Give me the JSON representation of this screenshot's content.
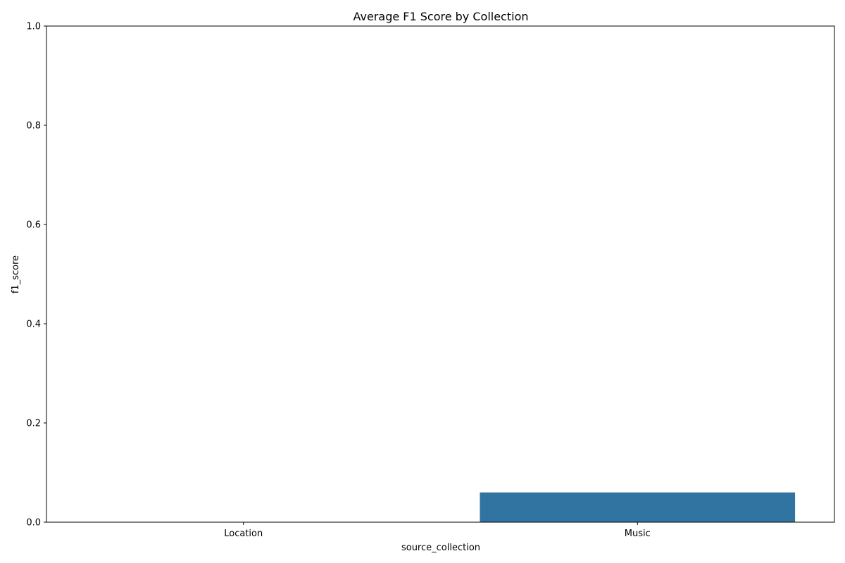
{
  "chart_data": {
    "type": "bar",
    "title": "Average F1 Score by Collection",
    "xlabel": "source_collection",
    "ylabel": "f1_score",
    "categories": [
      "Location",
      "Music"
    ],
    "values": [
      0.0,
      0.06
    ],
    "ylim": [
      0,
      1.0
    ],
    "yticks": [
      "0.0",
      "0.2",
      "0.4",
      "0.6",
      "0.8",
      "1.0"
    ],
    "bar_color": "#3274a1",
    "grid": false,
    "legend": "none"
  }
}
